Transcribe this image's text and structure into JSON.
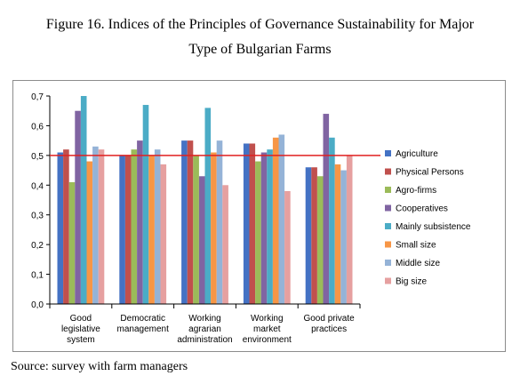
{
  "figure": {
    "caption_line1": "Figure 16. Indices of the Principles of Governance Sustainability for Major",
    "caption_line2": "Type of Bulgarian Farms",
    "source": "Source: survey with farm managers"
  },
  "chart_data": {
    "type": "bar",
    "categories": [
      [
        "Good",
        "legislative",
        "system"
      ],
      [
        "Democratic",
        "management"
      ],
      [
        "Working",
        "agrarian",
        "administration"
      ],
      [
        "Working",
        "market",
        "environment"
      ],
      [
        "Good private",
        "practices"
      ]
    ],
    "series": [
      {
        "name": "Agriculture",
        "color": "#4472c4",
        "values": [
          0.51,
          0.5,
          0.55,
          0.54,
          0.46
        ]
      },
      {
        "name": "Physical Persons",
        "color": "#c0504d",
        "values": [
          0.52,
          0.5,
          0.55,
          0.54,
          0.46
        ]
      },
      {
        "name": "Agro-firms",
        "color": "#9bbb59",
        "values": [
          0.41,
          0.52,
          0.5,
          0.48,
          0.43
        ]
      },
      {
        "name": "Cooperatives",
        "color": "#8064a2",
        "values": [
          0.65,
          0.55,
          0.43,
          0.51,
          0.64
        ]
      },
      {
        "name": "Mainly subsistence",
        "color": "#4bacc6",
        "values": [
          0.7,
          0.67,
          0.66,
          0.52,
          0.56
        ]
      },
      {
        "name": "Small size",
        "color": "#f79646",
        "values": [
          0.48,
          0.5,
          0.51,
          0.56,
          0.47
        ]
      },
      {
        "name": "Middle size",
        "color": "#95b3d7",
        "values": [
          0.53,
          0.52,
          0.55,
          0.57,
          0.45
        ]
      },
      {
        "name": "Big size",
        "color": "#e6a0a0",
        "values": [
          0.52,
          0.47,
          0.4,
          0.38,
          0.5
        ]
      }
    ],
    "y_ticks": [
      "0,0",
      "0,1",
      "0,2",
      "0,3",
      "0,4",
      "0,5",
      "0,6",
      "0,7"
    ],
    "ylim": [
      0,
      0.7
    ],
    "reference_line": {
      "value": 0.5,
      "color": "#e02020"
    },
    "grid": false,
    "legend_position": "right",
    "title": "",
    "xlabel": "",
    "ylabel": ""
  }
}
